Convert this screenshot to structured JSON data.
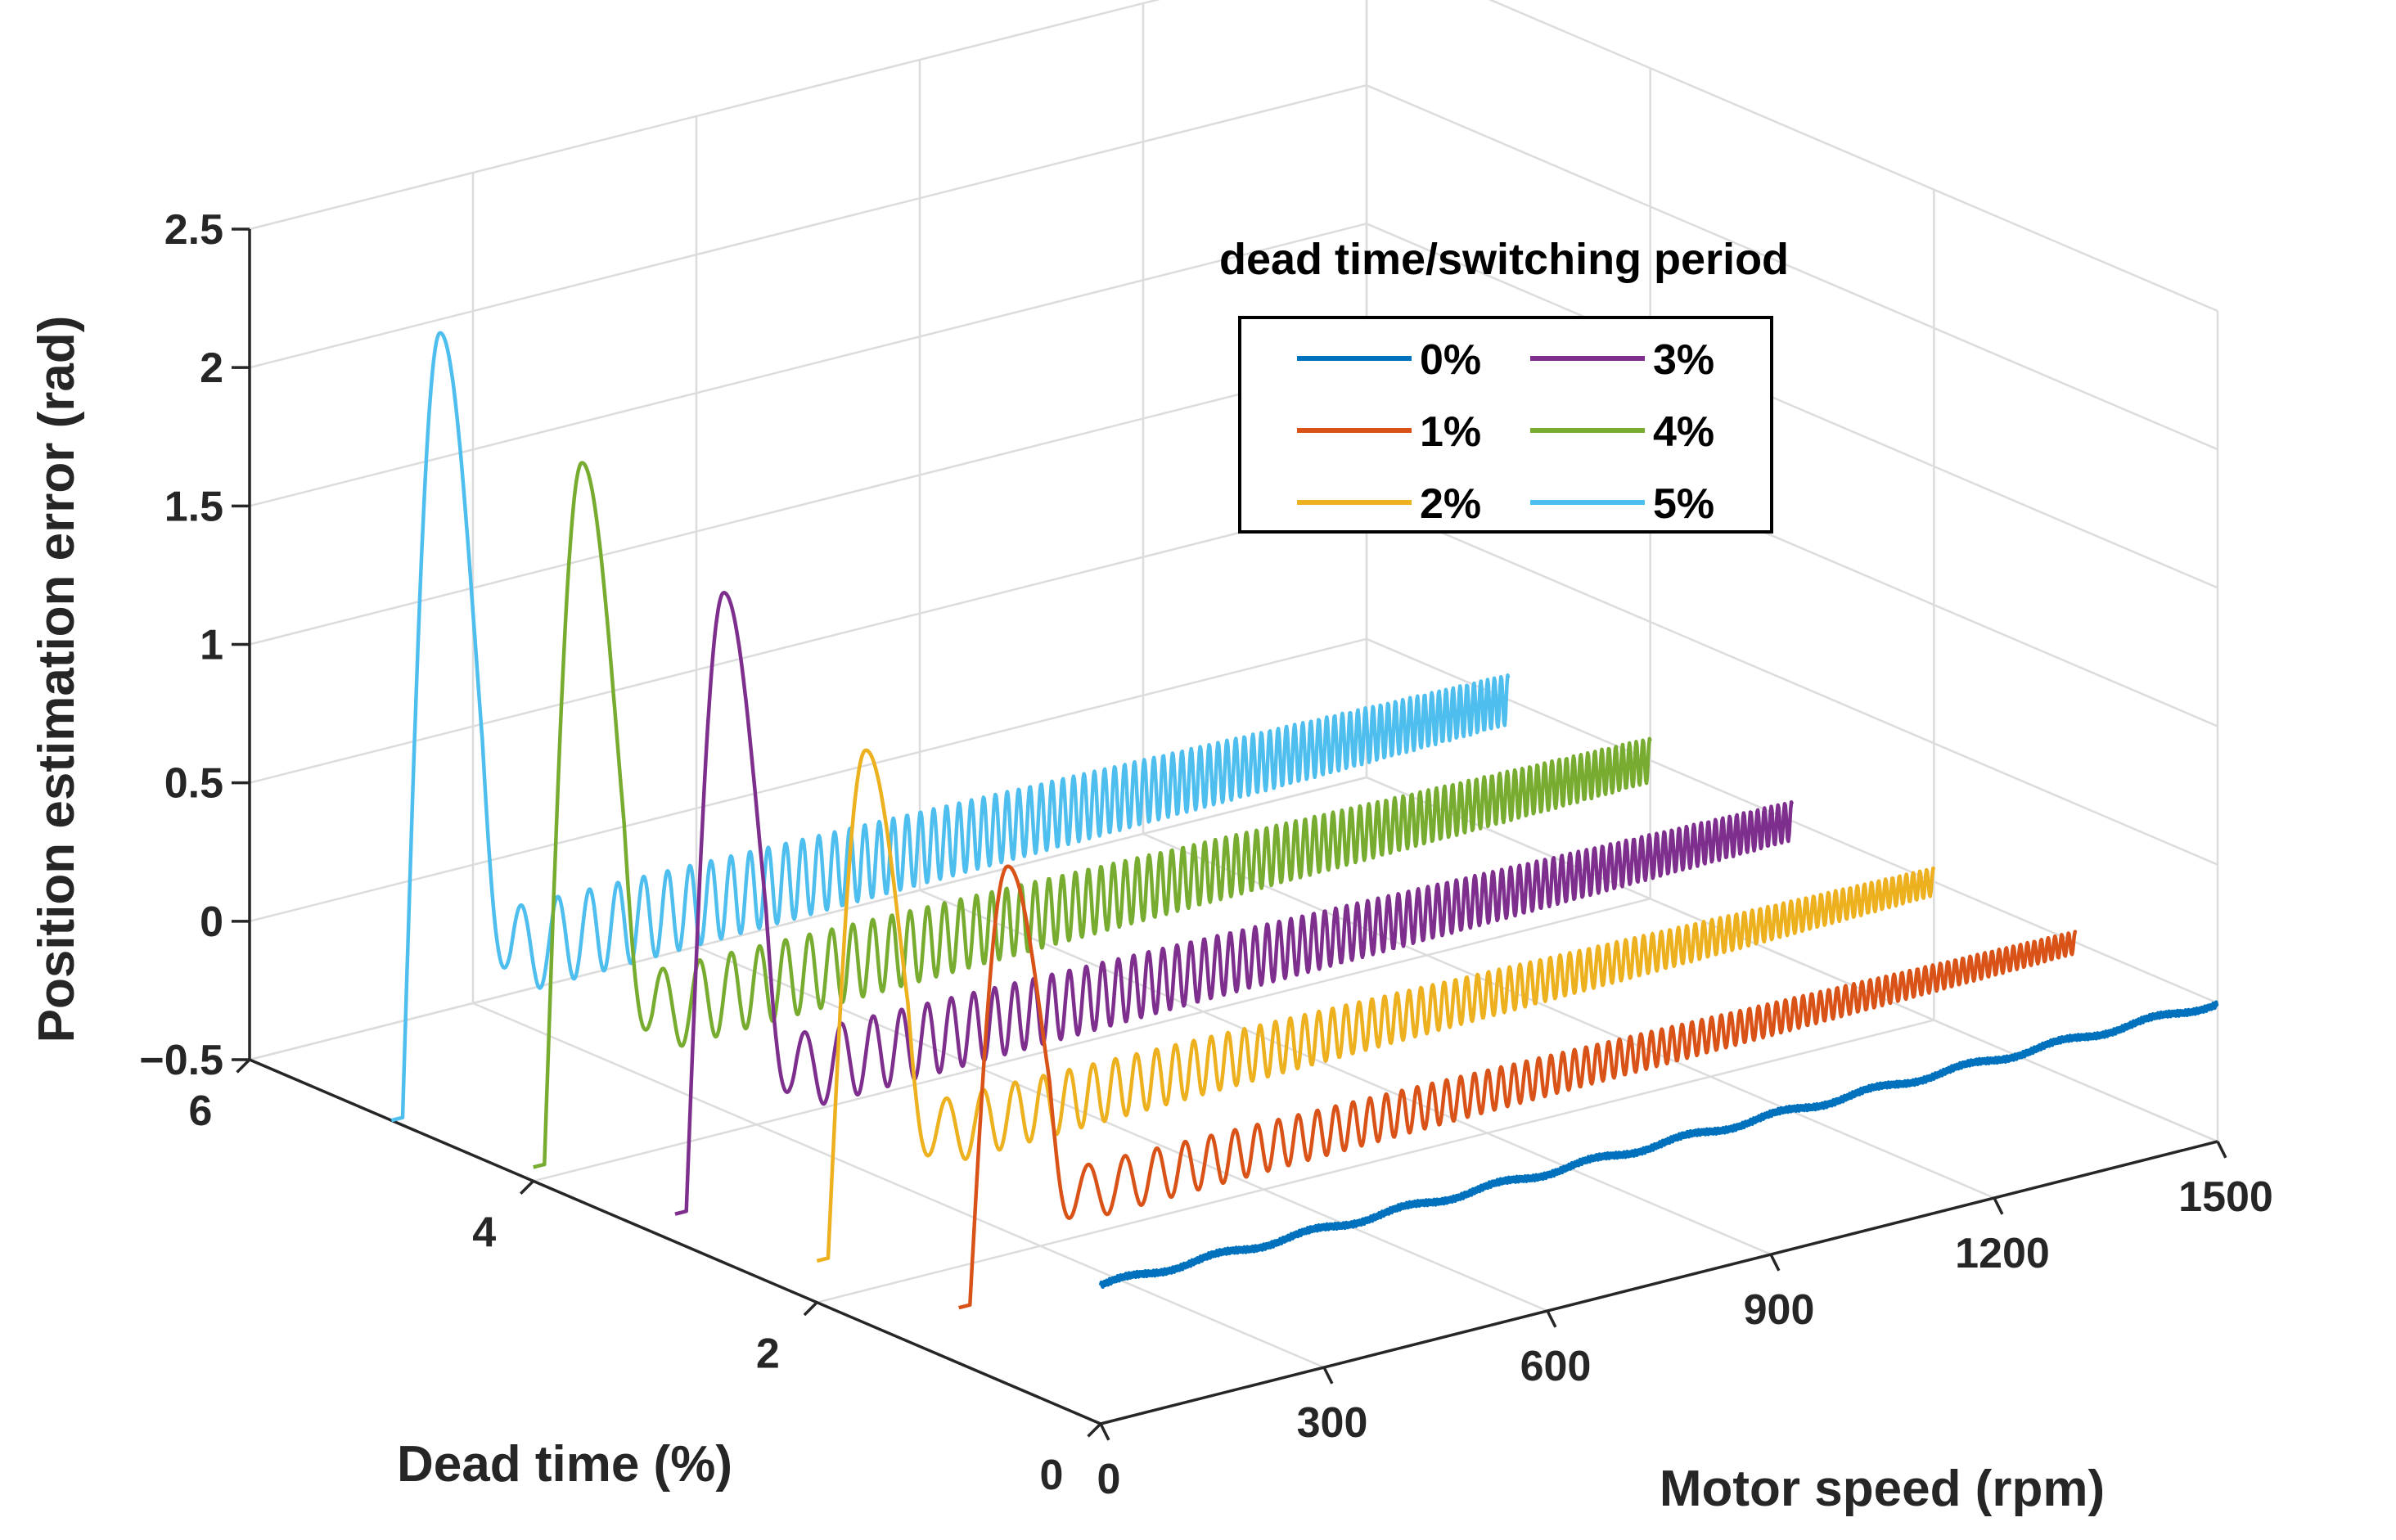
{
  "chart_data": {
    "type": "line3d",
    "title": "",
    "xlabel": "Motor speed (rpm)",
    "ylabel": "Dead time (%)",
    "zlabel": "Position estimation error (rad)",
    "xlim": [
      0,
      1500
    ],
    "ylim": [
      0,
      6
    ],
    "zlim": [
      -0.5,
      2.5
    ],
    "x_ticks": [
      "0",
      "300",
      "600",
      "900",
      "1200",
      "1500"
    ],
    "y_ticks": [
      "0",
      "2",
      "4",
      "6"
    ],
    "z_ticks": [
      "−0.5",
      "0",
      "0.5",
      "1",
      "1.5",
      "2",
      "2.5"
    ],
    "grid": true,
    "legend": {
      "title": "dead time/switching period",
      "placement": "top-right",
      "columns": 2
    },
    "series": [
      {
        "name": "0%",
        "dead_time": 0,
        "color": "#0072BD",
        "peak": 0.05,
        "start_error": 0.0,
        "ripple_start": 0.02,
        "ripple_end": 0.02,
        "end_error": 0.0
      },
      {
        "name": "1%",
        "dead_time": 1,
        "color": "#D95319",
        "peak": 1.25,
        "start_error": -0.3,
        "ripple_start": 0.1,
        "ripple_end": 0.04,
        "end_error": 0.0
      },
      {
        "name": "2%",
        "dead_time": 2,
        "color": "#EDB120",
        "peak": 1.45,
        "start_error": -0.35,
        "ripple_start": 0.12,
        "ripple_end": 0.05,
        "end_error": 0.0
      },
      {
        "name": "3%",
        "dead_time": 3,
        "color": "#7E2F8E",
        "peak": 1.8,
        "start_error": -0.4,
        "ripple_start": 0.14,
        "ripple_end": 0.07,
        "end_error": 0.0
      },
      {
        "name": "4%",
        "dead_time": 4,
        "color": "#77AC30",
        "peak": 2.05,
        "start_error": -0.45,
        "ripple_start": 0.15,
        "ripple_end": 0.08,
        "end_error": 0.0
      },
      {
        "name": "5%",
        "dead_time": 5,
        "color": "#4DBEEE",
        "peak": 2.3,
        "start_error": -0.5,
        "ripple_start": 0.16,
        "ripple_end": 0.09,
        "end_error": 0.0
      }
    ]
  }
}
